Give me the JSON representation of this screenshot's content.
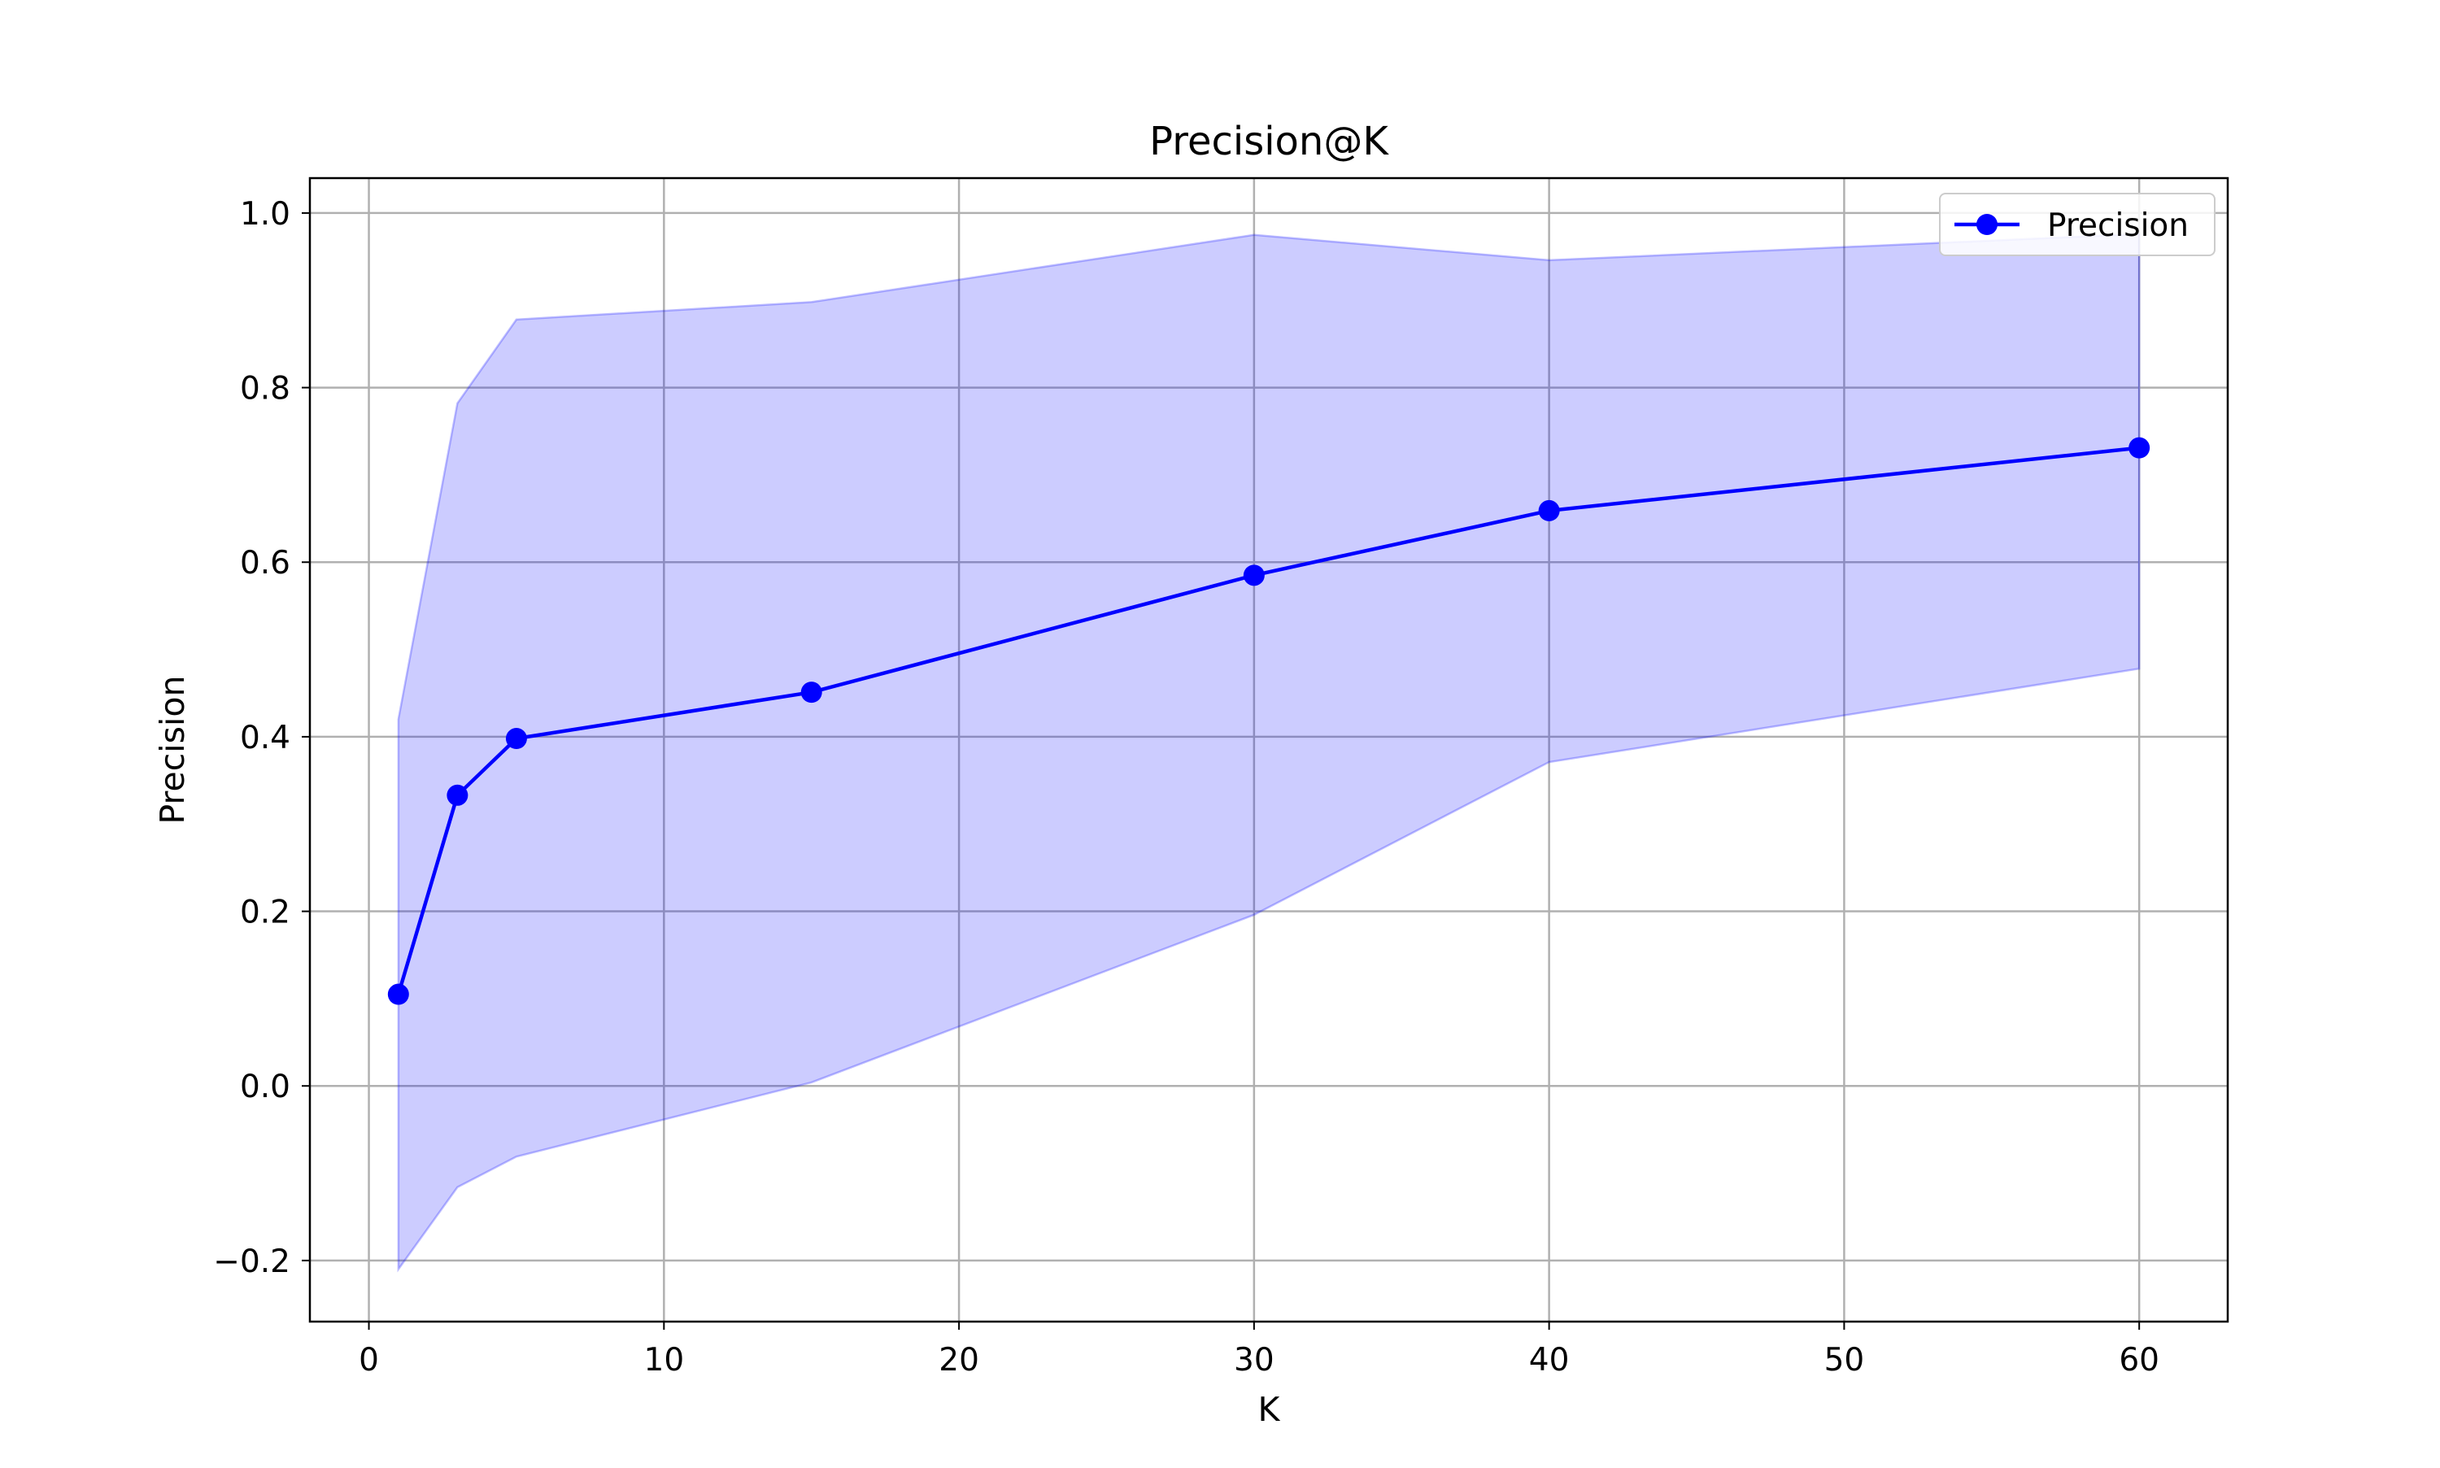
{
  "chart_data": {
    "type": "line",
    "title": "Precision@K",
    "xlabel": "K",
    "ylabel": "Precision",
    "xlim": [
      -2,
      63
    ],
    "ylim": [
      -0.27,
      1.04
    ],
    "x_ticks": [
      0,
      10,
      20,
      30,
      40,
      50,
      60
    ],
    "x_tick_labels": [
      "0",
      "10",
      "20",
      "30",
      "40",
      "50",
      "60"
    ],
    "y_ticks": [
      -0.2,
      0.0,
      0.2,
      0.4,
      0.6,
      0.8,
      1.0
    ],
    "y_tick_labels": [
      "−0.2",
      "0.0",
      "0.2",
      "0.4",
      "0.6",
      "0.8",
      "1.0"
    ],
    "grid": true,
    "legend_position": "top-right",
    "x": [
      1,
      3,
      5,
      15,
      30,
      40,
      60
    ],
    "series": [
      {
        "name": "Precision",
        "values": [
          0.105,
          0.333,
          0.398,
          0.451,
          0.585,
          0.659,
          0.731
        ],
        "color": "#0000ff",
        "marker": "circle"
      }
    ],
    "band": {
      "upper": [
        0.42,
        0.782,
        0.878,
        0.898,
        0.975,
        0.946,
        0.976
      ],
      "lower": [
        -0.21,
        -0.116,
        -0.081,
        0.004,
        0.196,
        0.371,
        0.478
      ],
      "color": "#0000ff",
      "opacity": 0.2
    },
    "colors": {
      "grid": "#b0b0b0",
      "axes": "#000000",
      "legend_border": "#cccccc"
    }
  }
}
